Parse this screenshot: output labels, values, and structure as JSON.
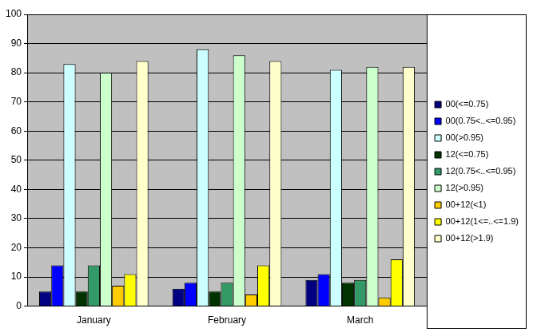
{
  "chart_data": {
    "type": "bar",
    "categories": [
      "January",
      "February",
      "March"
    ],
    "series": [
      {
        "name": "00(<=0.75)",
        "color": "#000080",
        "values": [
          5,
          6,
          9
        ]
      },
      {
        "name": "00(0.75<..<=0.95)",
        "color": "#0000ff",
        "values": [
          14,
          8,
          11
        ]
      },
      {
        "name": "00(>0.95)",
        "color": "#ccffff",
        "values": [
          83,
          88,
          81
        ]
      },
      {
        "name": "12(<=0.75)",
        "color": "#003300",
        "values": [
          5,
          5,
          8
        ]
      },
      {
        "name": "12(0.75<..<=0.95)",
        "color": "#339966",
        "values": [
          14,
          8,
          9
        ]
      },
      {
        "name": "12(>0.95)",
        "color": "#ccffcc",
        "values": [
          80,
          86,
          82
        ]
      },
      {
        "name": "00+12(<1)",
        "color": "#ffcc00",
        "values": [
          7,
          4,
          3
        ]
      },
      {
        "name": "00+12(1<=..<=1.9)",
        "color": "#ffff00",
        "values": [
          11,
          14,
          16
        ]
      },
      {
        "name": "00+12(>1.9)",
        "color": "#ffffcc",
        "values": [
          84,
          84,
          82
        ]
      }
    ],
    "ylim": [
      0,
      100
    ],
    "yticks": [
      0,
      10,
      20,
      30,
      40,
      50,
      60,
      70,
      80,
      90,
      100
    ],
    "grid": true,
    "legend": "right"
  }
}
